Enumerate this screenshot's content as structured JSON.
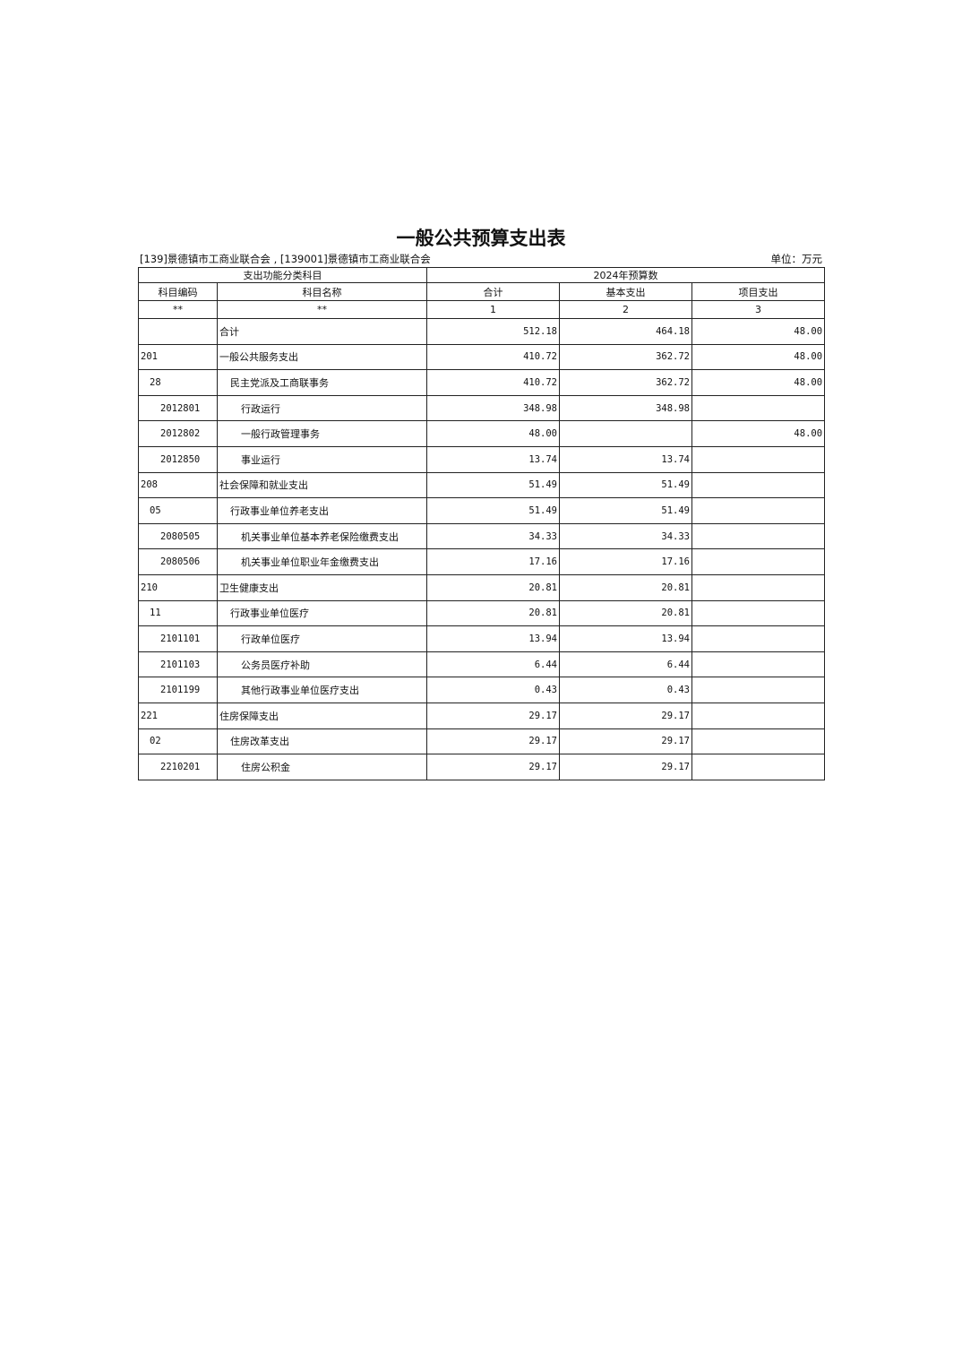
{
  "title": "一般公共预算支出表",
  "org": "[139]景德镇市工商业联合会 , [139001]景德镇市工商业联合会",
  "unit": "单位：万元",
  "header": {
    "group1": "支出功能分类科目",
    "group2": "2024年预算数",
    "code": "科目编码",
    "name": "科目名称",
    "total": "合计",
    "basic": "基本支出",
    "project": "项目支出",
    "idx_code": "**",
    "idx_name": "**",
    "idx1": "1",
    "idx2": "2",
    "idx3": "3"
  },
  "rows": [
    {
      "code": "",
      "name": "合计",
      "total": "512.18",
      "basic": "464.18",
      "project": "48.00",
      "level": 0
    },
    {
      "code": "201",
      "name": "一般公共服务支出",
      "total": "410.72",
      "basic": "362.72",
      "project": "48.00",
      "level": 0
    },
    {
      "code": "28",
      "name": "民主党派及工商联事务",
      "total": "410.72",
      "basic": "362.72",
      "project": "48.00",
      "level": 1
    },
    {
      "code": "2012801",
      "name": "行政运行",
      "total": "348.98",
      "basic": "348.98",
      "project": "",
      "level": 2
    },
    {
      "code": "2012802",
      "name": "一般行政管理事务",
      "total": "48.00",
      "basic": "",
      "project": "48.00",
      "level": 2
    },
    {
      "code": "2012850",
      "name": "事业运行",
      "total": "13.74",
      "basic": "13.74",
      "project": "",
      "level": 2
    },
    {
      "code": "208",
      "name": "社会保障和就业支出",
      "total": "51.49",
      "basic": "51.49",
      "project": "",
      "level": 0
    },
    {
      "code": "05",
      "name": "行政事业单位养老支出",
      "total": "51.49",
      "basic": "51.49",
      "project": "",
      "level": 1
    },
    {
      "code": "2080505",
      "name": "机关事业单位基本养老保险缴费支出",
      "total": "34.33",
      "basic": "34.33",
      "project": "",
      "level": 2
    },
    {
      "code": "2080506",
      "name": "机关事业单位职业年金缴费支出",
      "total": "17.16",
      "basic": "17.16",
      "project": "",
      "level": 2
    },
    {
      "code": "210",
      "name": "卫生健康支出",
      "total": "20.81",
      "basic": "20.81",
      "project": "",
      "level": 0
    },
    {
      "code": "11",
      "name": "行政事业单位医疗",
      "total": "20.81",
      "basic": "20.81",
      "project": "",
      "level": 1
    },
    {
      "code": "2101101",
      "name": "行政单位医疗",
      "total": "13.94",
      "basic": "13.94",
      "project": "",
      "level": 2
    },
    {
      "code": "2101103",
      "name": "公务员医疗补助",
      "total": "6.44",
      "basic": "6.44",
      "project": "",
      "level": 2
    },
    {
      "code": "2101199",
      "name": "其他行政事业单位医疗支出",
      "total": "0.43",
      "basic": "0.43",
      "project": "",
      "level": 2
    },
    {
      "code": "221",
      "name": "住房保障支出",
      "total": "29.17",
      "basic": "29.17",
      "project": "",
      "level": 0
    },
    {
      "code": "02",
      "name": "住房改革支出",
      "total": "29.17",
      "basic": "29.17",
      "project": "",
      "level": 1
    },
    {
      "code": "2210201",
      "name": "住房公积金",
      "total": "29.17",
      "basic": "29.17",
      "project": "",
      "level": 2
    }
  ]
}
